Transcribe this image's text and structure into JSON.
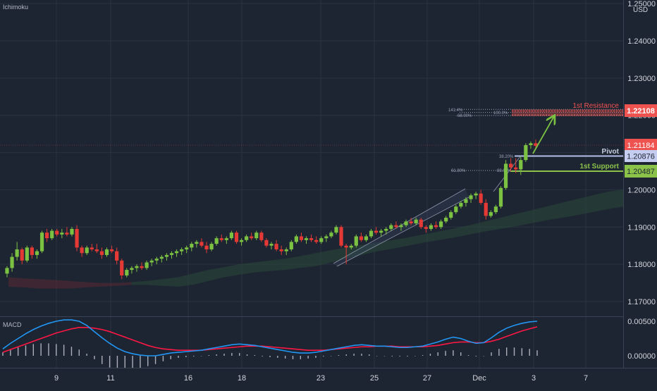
{
  "chart_data": [
    {
      "type": "candlestick",
      "indicator_label": "Ichimoku",
      "currency": "USD",
      "yticks": [
        "1.17000",
        "1.18000",
        "1.19000",
        "1.20000",
        "1.21000",
        "1.22000",
        "1.23000",
        "1.24000",
        "1.25000"
      ],
      "ylim": [
        1.166,
        1.252
      ],
      "xticks": [
        "9",
        "11",
        "16",
        "18",
        "23",
        "25",
        "27",
        "Dec",
        "3",
        "7"
      ],
      "grid": true,
      "candles": [
        [
          1.1775,
          1.1795,
          1.1765,
          1.179
        ],
        [
          1.179,
          1.183,
          1.178,
          1.182
        ],
        [
          1.182,
          1.186,
          1.181,
          1.184
        ],
        [
          1.184,
          1.1845,
          1.18,
          1.181
        ],
        [
          1.181,
          1.185,
          1.1805,
          1.1845
        ],
        [
          1.1845,
          1.185,
          1.1815,
          1.1825
        ],
        [
          1.1825,
          1.184,
          1.1815,
          1.1835
        ],
        [
          1.1835,
          1.189,
          1.183,
          1.1885
        ],
        [
          1.1885,
          1.1895,
          1.186,
          1.187
        ],
        [
          1.187,
          1.1895,
          1.1865,
          1.189
        ],
        [
          1.189,
          1.1895,
          1.1875,
          1.188
        ],
        [
          1.188,
          1.1895,
          1.187,
          1.1885
        ],
        [
          1.1885,
          1.19,
          1.1875,
          1.188
        ],
        [
          1.188,
          1.19,
          1.1875,
          1.1895
        ],
        [
          1.1895,
          1.1905,
          1.1835,
          1.1845
        ],
        [
          1.1845,
          1.185,
          1.182,
          1.183
        ],
        [
          1.183,
          1.185,
          1.1825,
          1.1845
        ],
        [
          1.1845,
          1.1855,
          1.1835,
          1.184
        ],
        [
          1.184,
          1.1855,
          1.183,
          1.1835
        ],
        [
          1.1835,
          1.1845,
          1.1815,
          1.1825
        ],
        [
          1.1825,
          1.1845,
          1.182,
          1.184
        ],
        [
          1.184,
          1.185,
          1.183,
          1.1835
        ],
        [
          1.1835,
          1.1845,
          1.18,
          1.181
        ],
        [
          1.181,
          1.1815,
          1.176,
          1.177
        ],
        [
          1.177,
          1.179,
          1.1765,
          1.1785
        ],
        [
          1.1785,
          1.1795,
          1.1775,
          1.179
        ],
        [
          1.179,
          1.18,
          1.178,
          1.1795
        ],
        [
          1.1795,
          1.1805,
          1.1785,
          1.179
        ],
        [
          1.179,
          1.181,
          1.1785,
          1.1805
        ],
        [
          1.1805,
          1.1815,
          1.1795,
          1.181
        ],
        [
          1.181,
          1.182,
          1.18,
          1.1815
        ],
        [
          1.1815,
          1.1825,
          1.1805,
          1.182
        ],
        [
          1.182,
          1.183,
          1.181,
          1.1825
        ],
        [
          1.1825,
          1.1835,
          1.1815,
          1.183
        ],
        [
          1.183,
          1.184,
          1.182,
          1.1835
        ],
        [
          1.1835,
          1.1845,
          1.1825,
          1.184
        ],
        [
          1.184,
          1.185,
          1.183,
          1.1845
        ],
        [
          1.1845,
          1.186,
          1.1835,
          1.1855
        ],
        [
          1.1855,
          1.1865,
          1.1845,
          1.186
        ],
        [
          1.186,
          1.187,
          1.1845,
          1.185
        ],
        [
          1.185,
          1.186,
          1.183,
          1.184
        ],
        [
          1.184,
          1.186,
          1.1835,
          1.1855
        ],
        [
          1.1855,
          1.1875,
          1.185,
          1.187
        ],
        [
          1.187,
          1.188,
          1.186,
          1.1865
        ],
        [
          1.1865,
          1.1875,
          1.1855,
          1.187
        ],
        [
          1.187,
          1.189,
          1.1865,
          1.1885
        ],
        [
          1.1885,
          1.189,
          1.1855,
          1.186
        ],
        [
          1.186,
          1.187,
          1.185,
          1.1865
        ],
        [
          1.1865,
          1.188,
          1.186,
          1.1875
        ],
        [
          1.1875,
          1.1885,
          1.1865,
          1.187
        ],
        [
          1.187,
          1.189,
          1.1865,
          1.1885
        ],
        [
          1.1885,
          1.189,
          1.186,
          1.1865
        ],
        [
          1.1865,
          1.187,
          1.1845,
          1.185
        ],
        [
          1.185,
          1.186,
          1.184,
          1.1855
        ],
        [
          1.1855,
          1.1865,
          1.1835,
          1.184
        ],
        [
          1.184,
          1.185,
          1.1825,
          1.1835
        ],
        [
          1.1835,
          1.1845,
          1.1825,
          1.184
        ],
        [
          1.184,
          1.1865,
          1.1835,
          1.186
        ],
        [
          1.186,
          1.188,
          1.1855,
          1.1875
        ],
        [
          1.1875,
          1.1885,
          1.186,
          1.1865
        ],
        [
          1.1865,
          1.1875,
          1.1855,
          1.187
        ],
        [
          1.187,
          1.188,
          1.186,
          1.1865
        ],
        [
          1.1865,
          1.1875,
          1.1855,
          1.186
        ],
        [
          1.186,
          1.1875,
          1.1855,
          1.187
        ],
        [
          1.187,
          1.188,
          1.186,
          1.1875
        ],
        [
          1.1875,
          1.189,
          1.187,
          1.1885
        ],
        [
          1.1885,
          1.1905,
          1.188,
          1.19
        ],
        [
          1.19,
          1.1905,
          1.1845,
          1.185
        ],
        [
          1.185,
          1.1855,
          1.18,
          1.1845
        ],
        [
          1.1845,
          1.1855,
          1.184,
          1.185
        ],
        [
          1.185,
          1.188,
          1.1845,
          1.1875
        ],
        [
          1.1875,
          1.1885,
          1.186,
          1.1865
        ],
        [
          1.1865,
          1.188,
          1.186,
          1.1875
        ],
        [
          1.1875,
          1.1895,
          1.187,
          1.189
        ],
        [
          1.189,
          1.19,
          1.188,
          1.1885
        ],
        [
          1.1885,
          1.1895,
          1.1875,
          1.189
        ],
        [
          1.189,
          1.19,
          1.188,
          1.1895
        ],
        [
          1.1895,
          1.191,
          1.189,
          1.1905
        ],
        [
          1.1905,
          1.1915,
          1.1895,
          1.19
        ],
        [
          1.19,
          1.191,
          1.189,
          1.1905
        ],
        [
          1.1905,
          1.192,
          1.19,
          1.1915
        ],
        [
          1.1915,
          1.1925,
          1.1905,
          1.191
        ],
        [
          1.191,
          1.1925,
          1.1905,
          1.192
        ],
        [
          1.192,
          1.1925,
          1.1895,
          1.19
        ],
        [
          1.19,
          1.1905,
          1.1885,
          1.1895
        ],
        [
          1.1895,
          1.191,
          1.189,
          1.1905
        ],
        [
          1.1905,
          1.1915,
          1.1895,
          1.19
        ],
        [
          1.19,
          1.192,
          1.1895,
          1.1915
        ],
        [
          1.1915,
          1.193,
          1.191,
          1.1925
        ],
        [
          1.1925,
          1.1945,
          1.192,
          1.194
        ],
        [
          1.194,
          1.196,
          1.1935,
          1.1955
        ],
        [
          1.1955,
          1.197,
          1.195,
          1.1965
        ],
        [
          1.1965,
          1.198,
          1.1955,
          1.1975
        ],
        [
          1.1975,
          1.199,
          1.1965,
          1.1985
        ],
        [
          1.1985,
          1.1995,
          1.1975,
          1.199
        ],
        [
          1.199,
          1.2,
          1.196,
          1.1965
        ],
        [
          1.1965,
          1.1975,
          1.192,
          1.193
        ],
        [
          1.193,
          1.1945,
          1.1925,
          1.194
        ],
        [
          1.194,
          1.196,
          1.1935,
          1.1955
        ],
        [
          1.1955,
          1.201,
          1.195,
          1.2005
        ],
        [
          1.2005,
          1.208,
          1.2,
          1.207
        ],
        [
          1.207,
          1.2085,
          1.205,
          1.206
        ],
        [
          1.206,
          1.2085,
          1.2045,
          1.2055
        ],
        [
          1.2055,
          1.209,
          1.204,
          1.208
        ],
        [
          1.208,
          1.2125,
          1.2075,
          1.212
        ],
        [
          1.212,
          1.213,
          1.211,
          1.2125
        ],
        [
          1.2125,
          1.2135,
          1.211,
          1.2118
        ]
      ],
      "cloud_top": [
        1.1765,
        1.1762,
        1.176,
        1.1758,
        1.1755,
        1.1752,
        1.175,
        1.175,
        1.1752,
        1.1755,
        1.176,
        1.1765,
        1.1775,
        1.1785,
        1.1792,
        1.18,
        1.1805,
        1.181,
        1.1815,
        1.1822,
        1.183,
        1.1838,
        1.1845,
        1.1852,
        1.1858,
        1.1865,
        1.1872,
        1.188,
        1.1888,
        1.1896,
        1.1905,
        1.1915,
        1.1925,
        1.1935,
        1.1945,
        1.1955,
        1.1965,
        1.1975,
        1.1985,
        1.1995,
        1.2
      ],
      "cloud_bottom": [
        1.174,
        1.1738,
        1.1735,
        1.1735,
        1.1735,
        1.1738,
        1.174,
        1.1742,
        1.1745,
        1.1745,
        1.1742,
        1.174,
        1.1745,
        1.1755,
        1.1765,
        1.1772,
        1.1778,
        1.1782,
        1.1785,
        1.179,
        1.1795,
        1.1805,
        1.1815,
        1.1825,
        1.1835,
        1.1842,
        1.185,
        1.1858,
        1.1865,
        1.1872,
        1.188,
        1.1888,
        1.1895,
        1.1902,
        1.191,
        1.1918,
        1.1925,
        1.1932,
        1.194,
        1.1948,
        1.1955
      ],
      "annotations": {
        "resistance": {
          "label": "1st Resistance",
          "value": 1.22108,
          "value_text": "1.22108",
          "color": "#ef5350"
        },
        "pivot": {
          "label": "Pivot",
          "value": 1.20876,
          "value_text": "1.20876",
          "color": "#b3bfe8"
        },
        "support": {
          "label": "1st Support",
          "value": 1.20487,
          "value_text": "1.20487",
          "color": "#8bc34a"
        },
        "last_price": {
          "value": 1.21184,
          "value_text": "1.21184",
          "color": "#ef5350"
        },
        "fib_labels": [
          "141.4%",
          "100.0%",
          "-68.00%",
          "38.20%",
          "61.80%",
          "88.60%"
        ]
      }
    },
    {
      "type": "macd",
      "title": "MACD",
      "yticks": [
        "0.00500",
        "0.00000"
      ],
      "ylim": [
        -0.0018,
        0.0058
      ],
      "macd": [
        0.001,
        0.0018,
        0.0025,
        0.0032,
        0.0038,
        0.0043,
        0.0047,
        0.005,
        0.0052,
        0.0052,
        0.005,
        0.0044,
        0.0035,
        0.0026,
        0.0018,
        0.0011,
        0.0006,
        0.0003,
        0.0001,
        0.0,
        0.0,
        0.0002,
        0.0004,
        0.0005,
        0.0006,
        0.0007,
        0.0008,
        0.001,
        0.0012,
        0.0014,
        0.0016,
        0.0017,
        0.0016,
        0.0015,
        0.0013,
        0.0011,
        0.0009,
        0.0007,
        0.0005,
        0.0004,
        0.0004,
        0.0005,
        0.0007,
        0.0009,
        0.0011,
        0.0013,
        0.0015,
        0.0016,
        0.0015,
        0.0014,
        0.0014,
        0.0013,
        0.0012,
        0.0012,
        0.0013,
        0.0014,
        0.0017,
        0.002,
        0.0024,
        0.0027,
        0.0025,
        0.0021,
        0.0018,
        0.0019,
        0.0026,
        0.0034,
        0.004,
        0.0044,
        0.0047,
        0.0049,
        0.005
      ],
      "signal": [
        0.0005,
        0.0009,
        0.0013,
        0.0017,
        0.0021,
        0.0025,
        0.0029,
        0.0033,
        0.0036,
        0.0039,
        0.0041,
        0.0041,
        0.004,
        0.0038,
        0.0035,
        0.0031,
        0.0027,
        0.0023,
        0.0019,
        0.0015,
        0.0012,
        0.001,
        0.0009,
        0.0008,
        0.0008,
        0.0008,
        0.0008,
        0.0009,
        0.001,
        0.0011,
        0.0012,
        0.0013,
        0.0014,
        0.0014,
        0.0014,
        0.0013,
        0.0012,
        0.0011,
        0.001,
        0.0009,
        0.0008,
        0.0008,
        0.0008,
        0.0009,
        0.001,
        0.0011,
        0.0012,
        0.0013,
        0.0013,
        0.0014,
        0.0014,
        0.0014,
        0.0013,
        0.0013,
        0.0013,
        0.0013,
        0.0014,
        0.0015,
        0.0017,
        0.0019,
        0.002,
        0.002,
        0.0019,
        0.0019,
        0.0021,
        0.0024,
        0.0028,
        0.0032,
        0.0036,
        0.0039,
        0.0042
      ],
      "colors": {
        "macd": "#2196f3",
        "signal": "#ff1744"
      }
    }
  ]
}
